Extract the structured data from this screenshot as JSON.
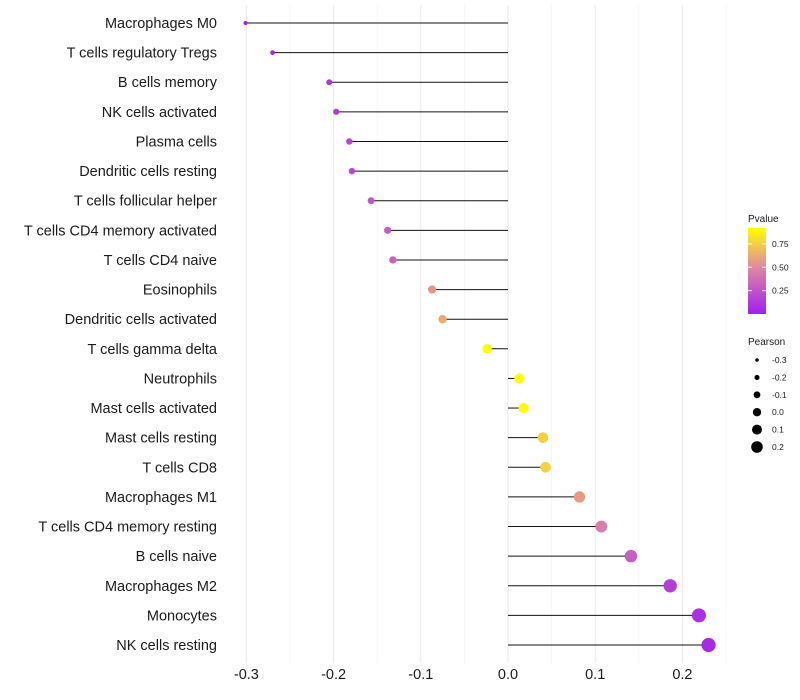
{
  "chart_data": {
    "type": "lollipop",
    "title": "",
    "xlabel": "",
    "ylabel": "",
    "xlim": [
      -0.31,
      0.25
    ],
    "x_ticks": [
      -0.3,
      -0.2,
      -0.1,
      0.0,
      0.1,
      0.2
    ],
    "x_tick_labels": [
      "-0.3",
      "-0.2",
      "-0.1",
      "0.0",
      "0.1",
      "0.2"
    ],
    "grid": true,
    "baseline": 0,
    "categories": [
      "Macrophages M0",
      "T cells regulatory  Tregs ",
      "B cells memory",
      "NK cells activated",
      "Plasma cells",
      "Dendritic cells resting",
      "T cells follicular helper",
      "T cells CD4 memory activated",
      "T cells CD4 naive",
      "Eosinophils",
      "Dendritic cells activated",
      "T cells gamma delta",
      "Neutrophils",
      "Mast cells activated",
      "Mast cells resting",
      "T cells CD8",
      "Macrophages M1",
      "T cells CD4 memory resting",
      "B cells naive",
      "Macrophages M2",
      "Monocytes",
      "NK cells resting"
    ],
    "pearson": [
      -0.301,
      -0.27,
      -0.205,
      -0.197,
      -0.182,
      -0.179,
      -0.157,
      -0.138,
      -0.132,
      -0.087,
      -0.075,
      -0.024,
      0.013,
      0.018,
      0.04,
      0.043,
      0.082,
      0.107,
      0.141,
      0.186,
      0.219,
      0.23
    ],
    "pvalue": [
      0.02,
      0.03,
      0.12,
      0.13,
      0.17,
      0.19,
      0.25,
      0.3,
      0.32,
      0.55,
      0.62,
      0.92,
      0.92,
      0.9,
      0.76,
      0.76,
      0.57,
      0.45,
      0.3,
      0.15,
      0.08,
      0.05
    ],
    "legend_color": {
      "title": "Pvalue",
      "ticks": [
        0.25,
        0.5,
        0.75
      ],
      "tick_labels": [
        "0.25",
        "0.50",
        "0.75"
      ],
      "range": [
        0.0,
        0.92
      ],
      "low_color": "#A020F0",
      "mid_color": "#E08AA0",
      "high_color": "#FFFF00",
      "placement": "right"
    },
    "legend_size": {
      "title": "Pearson",
      "values": [
        -0.3,
        -0.2,
        -0.1,
        0.0,
        0.1,
        0.2
      ],
      "labels": [
        "-0.3",
        "-0.2",
        "-0.1",
        "0.0",
        "0.1",
        "0.2"
      ],
      "placement": "right"
    }
  }
}
